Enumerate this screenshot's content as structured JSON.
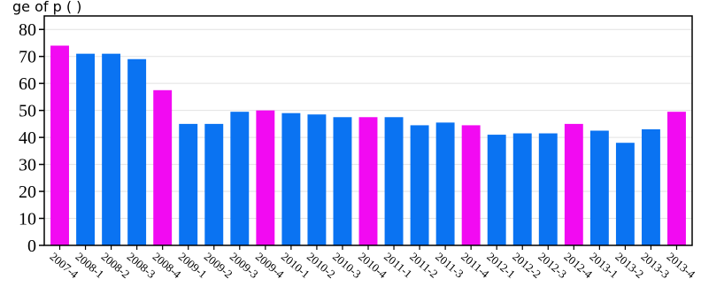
{
  "chart_data": {
    "type": "bar",
    "title": "ge of                  p         (      )",
    "categories": [
      "2007-4",
      "2008-1",
      "2008-2",
      "2008-3",
      "2008-4",
      "2009-1",
      "2009-2",
      "2009-3",
      "2009-4",
      "2010-1",
      "2010-2",
      "2010-3",
      "2010-4",
      "2011-1",
      "2011-2",
      "2011-3",
      "2011-4",
      "2012-1",
      "2012-2",
      "2012-3",
      "2012-4",
      "2013-1",
      "2013-2",
      "2013-3",
      "2013-4"
    ],
    "values": [
      74,
      71,
      71,
      69,
      57.5,
      45,
      45,
      49.5,
      50,
      49,
      48.5,
      47.5,
      47.5,
      47.5,
      44.5,
      45.5,
      44.5,
      41,
      41.5,
      41.5,
      45,
      42.5,
      38,
      43,
      49.5
    ],
    "highlight": [
      true,
      false,
      false,
      false,
      true,
      false,
      false,
      false,
      true,
      false,
      false,
      false,
      true,
      false,
      false,
      false,
      true,
      false,
      false,
      false,
      true,
      false,
      false,
      false,
      true
    ],
    "colors": {
      "normal": "#0a73f2",
      "highlight": "#f20af2"
    },
    "ylim": [
      0,
      85
    ],
    "yticks": [
      0,
      10,
      20,
      30,
      40,
      50,
      60,
      70,
      80
    ],
    "grid": true,
    "legend": "none"
  }
}
